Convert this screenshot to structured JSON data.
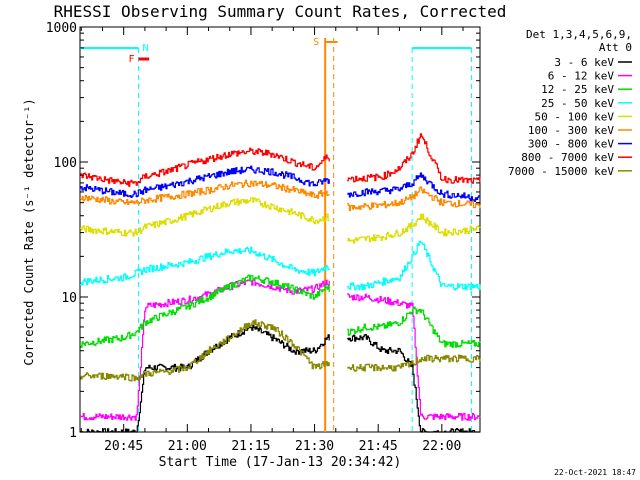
{
  "chart_data": {
    "type": "line",
    "title": "RHESSI Observing Summary Count Rates, Corrected",
    "xlabel": "Start Time (17-Jan-13 20:34:42)",
    "ylabel": "Corrected Count Rate (s⁻¹ detector⁻¹)",
    "y_scale": "log",
    "ylim": [
      1,
      1000
    ],
    "xlim": [
      "20:34:42",
      "22:09:00"
    ],
    "x_ticks": [
      "20:45",
      "21:00",
      "21:15",
      "21:30",
      "21:45",
      "22:00"
    ],
    "y_ticks": [
      "1",
      "10",
      "100",
      "1000"
    ],
    "legend_header": [
      "Det 1,3,4,5,6,9,",
      "Att 0"
    ],
    "footer_date": "22-Oct-2021 18:47",
    "data_gap": [
      "21:33:30",
      "21:37:30"
    ],
    "markers": {
      "saa_vertical_lines": [
        "21:32:30",
        "21:34:30"
      ],
      "saa_label": "S",
      "flare_label": "F",
      "night_label": "N",
      "night_periods": [
        [
          "20:34:42",
          "20:48:30"
        ],
        [
          "21:53:00",
          "22:07:00"
        ]
      ],
      "flare_period": [
        "20:48:30",
        "20:51:00"
      ]
    },
    "series": [
      {
        "name": "3 - 6 keV",
        "color": "#000000",
        "x": [
          "20:35",
          "20:45",
          "20:48",
          "20:50",
          "20:55",
          "21:00",
          "21:05",
          "21:10",
          "21:15",
          "21:20",
          "21:25",
          "21:30",
          "21:33",
          "21:38",
          "21:42",
          "21:46",
          "21:50",
          "21:53",
          "21:55",
          "22:00",
          "22:05",
          "22:08"
        ],
        "values": [
          1.0,
          1.0,
          1.0,
          3.0,
          3.0,
          3.0,
          4.0,
          5.0,
          6.0,
          5.0,
          4.0,
          4.0,
          5.0,
          5.0,
          5.0,
          4.0,
          4.0,
          3.0,
          1.0,
          1.0,
          1.0,
          1.0
        ]
      },
      {
        "name": "6 - 12 keV",
        "color": "#ff00ff",
        "x": [
          "20:35",
          "20:45",
          "20:48",
          "20:50",
          "20:55",
          "21:00",
          "21:05",
          "21:10",
          "21:15",
          "21:20",
          "21:25",
          "21:30",
          "21:33",
          "21:38",
          "21:42",
          "21:46",
          "21:50",
          "21:53",
          "21:55",
          "22:00",
          "22:05",
          "22:08"
        ],
        "values": [
          1.3,
          1.3,
          1.3,
          8.5,
          9.0,
          9.5,
          10.5,
          12.0,
          13.0,
          12.0,
          11.0,
          11.5,
          13.0,
          10.0,
          10.0,
          9.5,
          9.0,
          8.5,
          1.3,
          1.3,
          1.3,
          1.3
        ]
      },
      {
        "name": "12 - 25 keV",
        "color": "#00dd00",
        "x": [
          "20:35",
          "20:45",
          "20:48",
          "20:50",
          "20:55",
          "21:00",
          "21:05",
          "21:10",
          "21:15",
          "21:20",
          "21:25",
          "21:30",
          "21:33",
          "21:38",
          "21:42",
          "21:46",
          "21:50",
          "21:53",
          "21:55",
          "22:00",
          "22:05",
          "22:08"
        ],
        "values": [
          4.5,
          5.0,
          5.5,
          6.5,
          7.5,
          8.5,
          10.0,
          12.0,
          14.0,
          13.0,
          11.5,
          10.0,
          12.0,
          5.5,
          6.0,
          6.0,
          6.5,
          8.0,
          8.0,
          4.5,
          4.5,
          4.5
        ]
      },
      {
        "name": "25 - 50 keV",
        "color": "#00ffff",
        "x": [
          "20:35",
          "20:45",
          "20:48",
          "20:50",
          "20:55",
          "21:00",
          "21:05",
          "21:10",
          "21:15",
          "21:20",
          "21:25",
          "21:30",
          "21:33",
          "21:38",
          "21:42",
          "21:46",
          "21:50",
          "21:53",
          "21:55",
          "22:00",
          "22:05",
          "22:08"
        ],
        "values": [
          13.0,
          14.0,
          15.0,
          16.0,
          17.0,
          18.0,
          20.0,
          22.0,
          22.0,
          19.0,
          16.0,
          15.0,
          17.0,
          12.0,
          12.0,
          13.0,
          14.0,
          20.0,
          26.0,
          12.0,
          12.0,
          12.0
        ]
      },
      {
        "name": "50 - 100 keV",
        "color": "#dddd00",
        "x": [
          "20:35",
          "20:45",
          "20:48",
          "20:50",
          "20:55",
          "21:00",
          "21:05",
          "21:10",
          "21:15",
          "21:20",
          "21:25",
          "21:30",
          "21:33",
          "21:38",
          "21:42",
          "21:46",
          "21:50",
          "21:53",
          "21:55",
          "22:00",
          "22:05",
          "22:08"
        ],
        "values": [
          32.0,
          30.0,
          30.0,
          33.0,
          36.0,
          40.0,
          45.0,
          50.0,
          52.0,
          47.0,
          42.0,
          37.0,
          39.0,
          26.0,
          27.0,
          28.0,
          30.0,
          34.0,
          40.0,
          30.0,
          31.0,
          32.0
        ]
      },
      {
        "name": "100 - 300 keV",
        "color": "#ff8800",
        "x": [
          "20:35",
          "20:45",
          "20:48",
          "20:50",
          "20:55",
          "21:00",
          "21:05",
          "21:10",
          "21:15",
          "21:20",
          "21:25",
          "21:30",
          "21:33",
          "21:38",
          "21:42",
          "21:46",
          "21:50",
          "21:53",
          "21:55",
          "22:00",
          "22:05",
          "22:08"
        ],
        "values": [
          55.0,
          50.0,
          50.0,
          52.0,
          55.0,
          58.0,
          62.0,
          67.0,
          70.0,
          67.0,
          62.0,
          56.0,
          60.0,
          46.0,
          47.0,
          48.0,
          50.0,
          55.0,
          62.0,
          50.0,
          49.0,
          48.0
        ]
      },
      {
        "name": "300 - 800 keV",
        "color": "#0000ff",
        "x": [
          "20:35",
          "20:45",
          "20:48",
          "20:50",
          "20:55",
          "21:00",
          "21:05",
          "21:10",
          "21:15",
          "21:20",
          "21:25",
          "21:30",
          "21:33",
          "21:38",
          "21:42",
          "21:46",
          "21:50",
          "21:53",
          "21:55",
          "22:00",
          "22:05",
          "22:08"
        ],
        "values": [
          65.0,
          58.0,
          58.0,
          62.0,
          66.0,
          72.0,
          78.0,
          85.0,
          88.0,
          85.0,
          77.0,
          68.0,
          74.0,
          58.0,
          60.0,
          61.0,
          63.0,
          70.0,
          80.0,
          58.0,
          56.0,
          54.0
        ]
      },
      {
        "name": "800 - 7000 keV",
        "color": "#ff0000",
        "x": [
          "20:35",
          "20:45",
          "20:48",
          "20:50",
          "20:55",
          "21:00",
          "21:05",
          "21:10",
          "21:15",
          "21:20",
          "21:25",
          "21:30",
          "21:33",
          "21:38",
          "21:42",
          "21:46",
          "21:50",
          "21:53",
          "21:55",
          "22:00",
          "22:05",
          "22:08"
        ],
        "values": [
          80.0,
          70.0,
          70.0,
          78.0,
          85.0,
          95.0,
          105.0,
          115.0,
          120.0,
          115.0,
          100.0,
          90.0,
          110.0,
          75.0,
          76.0,
          78.0,
          90.0,
          115.0,
          160.0,
          75.0,
          73.0,
          72.0
        ]
      },
      {
        "name": "7000 - 15000 keV",
        "color": "#888800",
        "x": [
          "20:35",
          "20:45",
          "20:48",
          "20:50",
          "20:55",
          "21:00",
          "21:05",
          "21:10",
          "21:15",
          "21:20",
          "21:25",
          "21:30",
          "21:33",
          "21:38",
          "21:42",
          "21:46",
          "21:50",
          "21:53",
          "21:55",
          "22:00",
          "22:05",
          "22:08"
        ],
        "values": [
          2.6,
          2.6,
          2.5,
          2.7,
          2.8,
          3.0,
          4.0,
          5.0,
          6.5,
          6.0,
          4.5,
          3.0,
          3.2,
          3.0,
          3.0,
          3.0,
          3.0,
          3.2,
          3.5,
          3.5,
          3.5,
          3.5
        ]
      }
    ]
  }
}
